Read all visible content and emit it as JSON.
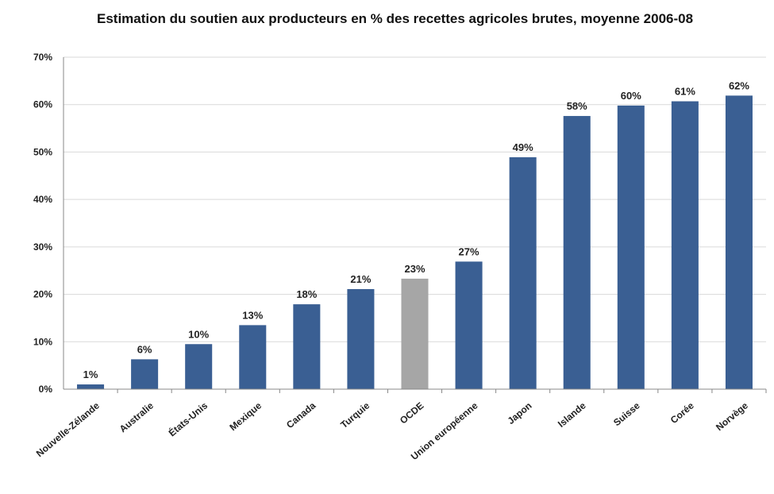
{
  "chart_data": {
    "type": "bar",
    "title": "Estimation du soutien aux producteurs en % des recettes agricoles brutes, moyenne 2006-08",
    "xlabel": "",
    "ylabel": "",
    "ylim": [
      0,
      70
    ],
    "ytick_labels": [
      "0%",
      "10%",
      "20%",
      "30%",
      "40%",
      "50%",
      "60%",
      "70%"
    ],
    "categories": [
      "Nouvelle-Zélande",
      "Australie",
      "États-Unis",
      "Mexique",
      "Canada",
      "Turquie",
      "OCDE",
      "Union européenne",
      "Japon",
      "Islande",
      "Suisse",
      "Corée",
      "Norvège"
    ],
    "values": [
      1,
      6.3,
      9.5,
      13.5,
      17.9,
      21.1,
      23.3,
      26.9,
      48.9,
      57.6,
      59.8,
      60.7,
      61.9
    ],
    "value_labels": [
      "1%",
      "6%",
      "10%",
      "13%",
      "18%",
      "21%",
      "23%",
      "27%",
      "49%",
      "58%",
      "60%",
      "61%",
      "62%"
    ],
    "colors": {
      "bar": "#3a5f93",
      "highlight": "#a6a6a6",
      "grid": "#d9d9d9",
      "axis": "#888888"
    },
    "highlight_category": "OCDE",
    "grid": true,
    "legend": "none"
  }
}
